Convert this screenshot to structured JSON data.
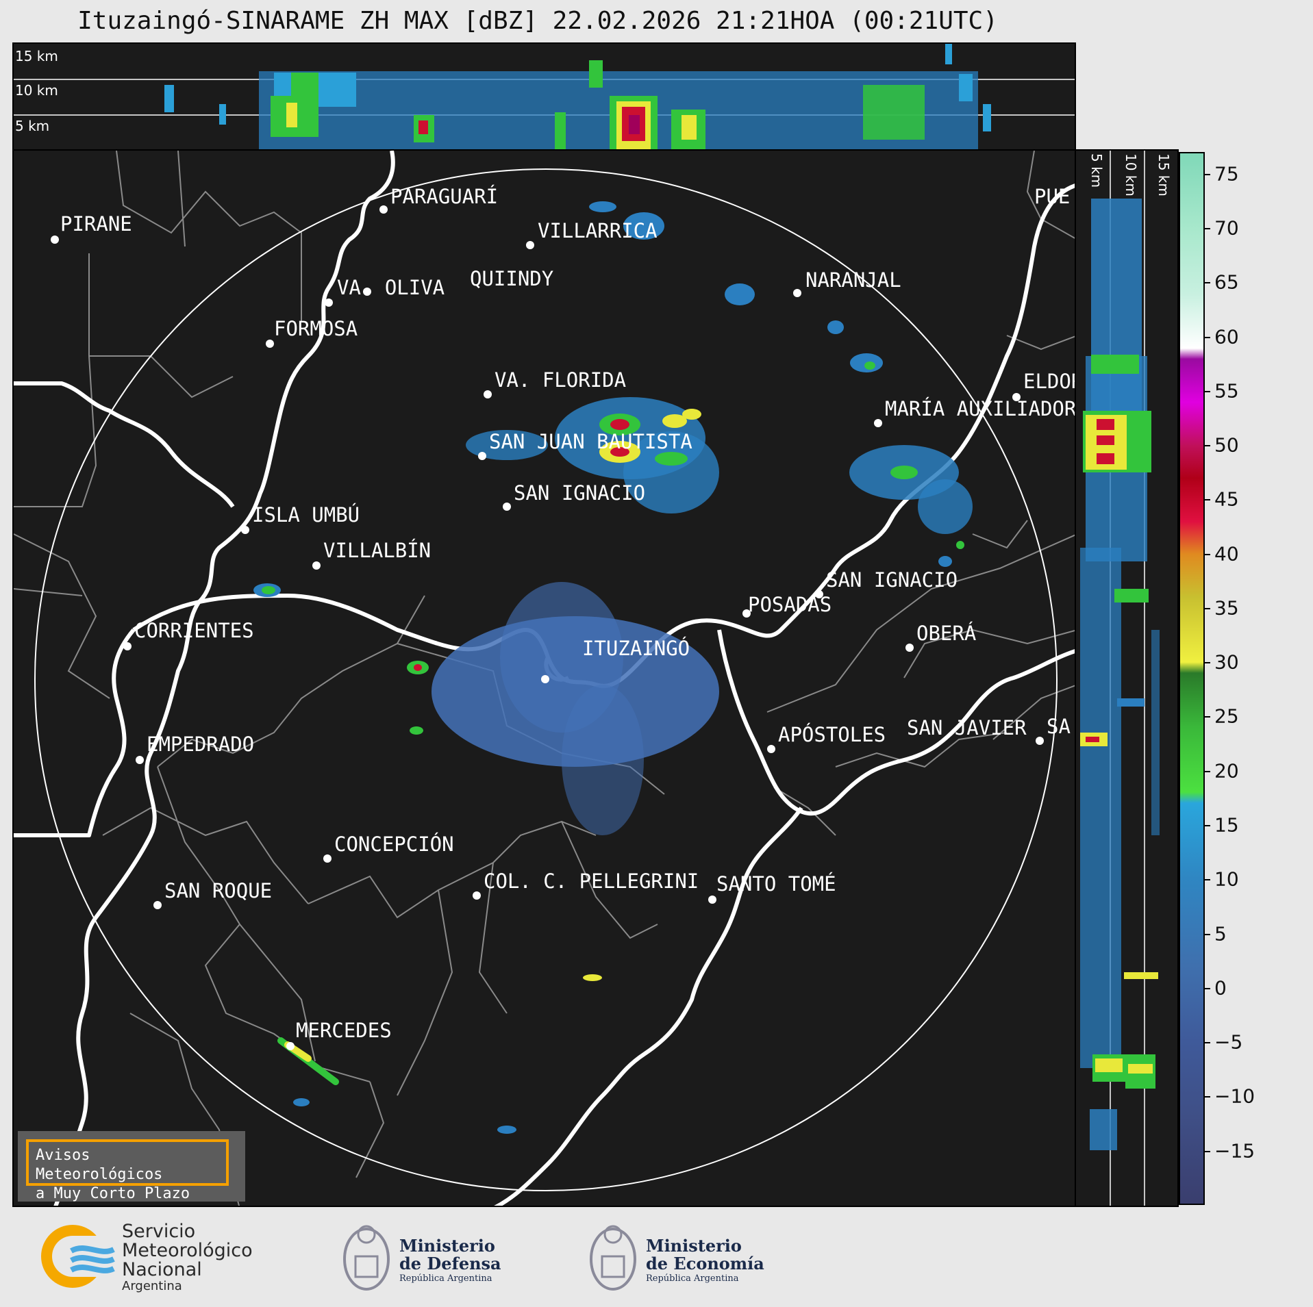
{
  "title": "Ituzaingó-SINARAME ZH MAX [dBZ] 22.02.2026 21:21HOA (00:21UTC)",
  "top_panel": {
    "height_labels": [
      "15 km",
      "10 km",
      "5 km"
    ]
  },
  "side_panel": {
    "height_labels": [
      "5 km",
      "10 km",
      "15 km"
    ]
  },
  "cities": [
    {
      "name": "PARAGUARÍ"
    },
    {
      "name": "PIRANE"
    },
    {
      "name": "VILLARRICA"
    },
    {
      "name": "VA. OLIVA"
    },
    {
      "name": "QUIINDY"
    },
    {
      "name": "NARANJAL"
    },
    {
      "name": "FORMOSA"
    },
    {
      "name": "VA. FLORIDA"
    },
    {
      "name": "ELDOR"
    },
    {
      "name": "MARÍA AUXILIADOR"
    },
    {
      "name": "SAN JUAN BAUTISTA"
    },
    {
      "name": "SAN IGNACIO"
    },
    {
      "name": "ISLA UMBÚ"
    },
    {
      "name": "VILLALBÍN"
    },
    {
      "name": "SAN IGNACIO"
    },
    {
      "name": "POSADAS"
    },
    {
      "name": "CORRIENTES"
    },
    {
      "name": "ITUZAINGÓ"
    },
    {
      "name": "OBERÁ"
    },
    {
      "name": "EMPEDRADO"
    },
    {
      "name": "APÓSTOLES"
    },
    {
      "name": "SAN JAVIER"
    },
    {
      "name": "SA"
    },
    {
      "name": "CONCEPCIÓN"
    },
    {
      "name": "COL. C. PELLEGRINI"
    },
    {
      "name": "SANTO TOMÉ"
    },
    {
      "name": "SAN ROQUE"
    },
    {
      "name": "MERCEDES"
    },
    {
      "name": "PUE"
    }
  ],
  "warning_box": {
    "line1": "Avisos Meteorológicos",
    "line2": "a Muy Corto Plazo",
    "border_color": "#f5a000"
  },
  "colorbar": {
    "unit": "dBZ",
    "tick_labels": [
      "75",
      "70",
      "65",
      "60",
      "55",
      "50",
      "45",
      "40",
      "35",
      "30",
      "25",
      "20",
      "15",
      "10",
      "5",
      "0",
      "−5",
      "−10",
      "−15"
    ],
    "range": [
      -20,
      77
    ]
  },
  "logos": {
    "smn": {
      "line1": "Servicio",
      "line2": "Meteorológico",
      "line3": "Nacional",
      "line4": "Argentina"
    },
    "defensa": {
      "line1": "Ministerio",
      "line2": "de Defensa",
      "line3": "República Argentina"
    },
    "economia": {
      "line1": "Ministerio",
      "line2": "de Economía",
      "line3": "República Argentina"
    }
  }
}
